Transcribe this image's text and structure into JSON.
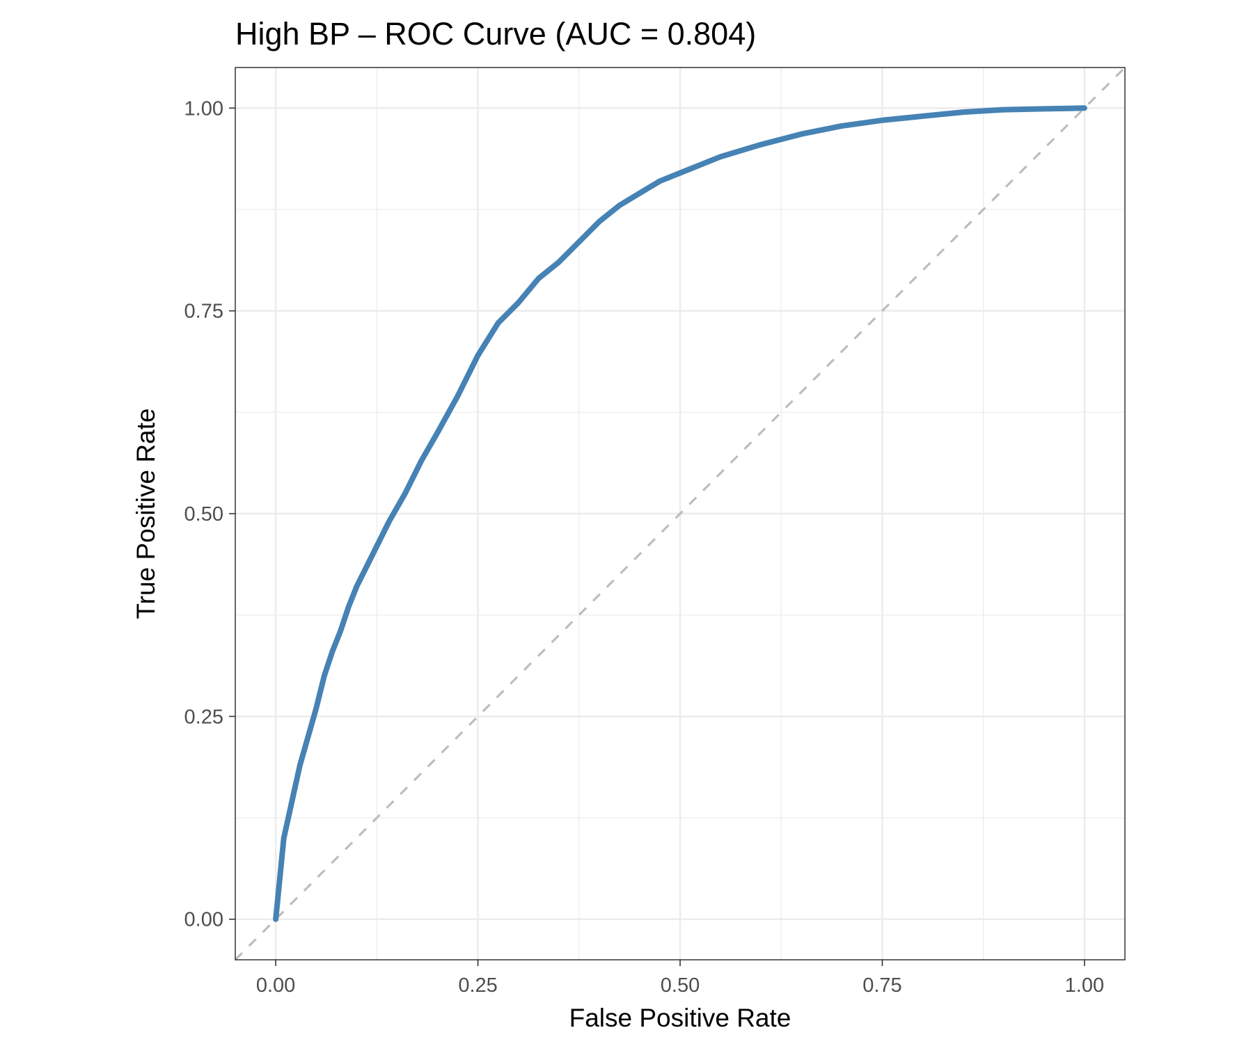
{
  "chart_data": {
    "type": "line",
    "title": "High BP – ROC Curve (AUC = 0.804)",
    "xlabel": "False Positive Rate",
    "ylabel": "True Positive Rate",
    "xlim": [
      -0.05,
      1.05
    ],
    "ylim": [
      -0.05,
      1.05
    ],
    "x_ticks": [
      0.0,
      0.25,
      0.5,
      0.75,
      1.0
    ],
    "y_ticks": [
      0.0,
      0.25,
      0.5,
      0.75,
      1.0
    ],
    "x_tick_labels": [
      "0.00",
      "0.25",
      "0.50",
      "0.75",
      "1.00"
    ],
    "y_tick_labels": [
      "0.00",
      "0.25",
      "0.50",
      "0.75",
      "1.00"
    ],
    "grid": true,
    "theme": "bw",
    "colors": {
      "curve": "#4682b4",
      "reference": "#bdbdbd",
      "grid": "#ebebeb",
      "frame": "#333333"
    },
    "series": [
      {
        "values": [
          [
            0.0,
            0.0
          ],
          [
            0.005,
            0.05
          ],
          [
            0.01,
            0.1
          ],
          [
            0.02,
            0.145
          ],
          [
            0.03,
            0.19
          ],
          [
            0.04,
            0.225
          ],
          [
            0.05,
            0.26
          ],
          [
            0.06,
            0.3
          ],
          [
            0.07,
            0.33
          ],
          [
            0.08,
            0.355
          ],
          [
            0.09,
            0.385
          ],
          [
            0.1,
            0.41
          ],
          [
            0.12,
            0.45
          ],
          [
            0.14,
            0.49
          ],
          [
            0.16,
            0.525
          ],
          [
            0.18,
            0.565
          ],
          [
            0.2,
            0.6
          ],
          [
            0.225,
            0.645
          ],
          [
            0.25,
            0.695
          ],
          [
            0.275,
            0.735
          ],
          [
            0.3,
            0.76
          ],
          [
            0.325,
            0.79
          ],
          [
            0.35,
            0.81
          ],
          [
            0.375,
            0.835
          ],
          [
            0.4,
            0.86
          ],
          [
            0.425,
            0.88
          ],
          [
            0.45,
            0.895
          ],
          [
            0.475,
            0.91
          ],
          [
            0.5,
            0.92
          ],
          [
            0.55,
            0.94
          ],
          [
            0.6,
            0.955
          ],
          [
            0.65,
            0.968
          ],
          [
            0.7,
            0.978
          ],
          [
            0.75,
            0.985
          ],
          [
            0.8,
            0.99
          ],
          [
            0.85,
            0.995
          ],
          [
            0.9,
            0.998
          ],
          [
            0.95,
            0.999
          ],
          [
            1.0,
            1.0
          ]
        ]
      },
      {
        "style": "dashed",
        "values": [
          [
            -0.05,
            -0.05
          ],
          [
            1.05,
            1.05
          ]
        ]
      }
    ]
  }
}
